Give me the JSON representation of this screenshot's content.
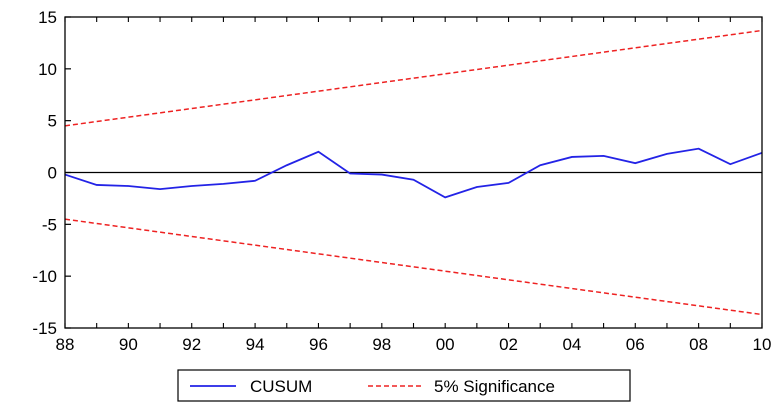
{
  "chart_data": {
    "type": "line",
    "title": "",
    "xlabel": "",
    "ylabel": "",
    "ylim": [
      -15,
      15
    ],
    "xlim": [
      1988,
      2010
    ],
    "yticks": [
      -15,
      -10,
      -5,
      0,
      5,
      10,
      15
    ],
    "xtick_labels": [
      "88",
      "90",
      "92",
      "94",
      "96",
      "98",
      "00",
      "02",
      "04",
      "06",
      "08",
      "10"
    ],
    "xtick_values": [
      1988,
      1990,
      1992,
      1994,
      1996,
      1998,
      2000,
      2002,
      2004,
      2006,
      2008,
      2010
    ],
    "grid": false,
    "zero_line": true,
    "legend_position": "bottom-center",
    "series": [
      {
        "name": "CUSUM",
        "color": "#2323e6",
        "style": "solid",
        "x": [
          1988,
          1989,
          1990,
          1991,
          1992,
          1993,
          1994,
          1995,
          1996,
          1997,
          1998,
          1999,
          2000,
          2001,
          2002,
          2003,
          2004,
          2005,
          2006,
          2007,
          2008,
          2009,
          2010
        ],
        "values": [
          -0.2,
          -1.2,
          -1.3,
          -1.6,
          -1.3,
          -1.1,
          -0.8,
          0.7,
          2.0,
          -0.1,
          -0.2,
          -0.7,
          -2.4,
          -1.4,
          -1.0,
          0.7,
          1.5,
          1.6,
          0.9,
          1.8,
          2.3,
          0.8,
          1.9
        ]
      },
      {
        "name": "5% Significance",
        "color": "#ee2222",
        "style": "dashed",
        "x": [
          1988,
          2010
        ],
        "values": [
          4.5,
          13.7
        ]
      },
      {
        "name": "5% Significance",
        "color": "#ee2222",
        "style": "dashed",
        "x": [
          1988,
          2010
        ],
        "values": [
          -4.5,
          -13.7
        ]
      }
    ],
    "legend": [
      {
        "label": "CUSUM",
        "color": "#2323e6",
        "style": "solid"
      },
      {
        "label": "5% Significance",
        "color": "#ee2222",
        "style": "dashed"
      }
    ]
  }
}
